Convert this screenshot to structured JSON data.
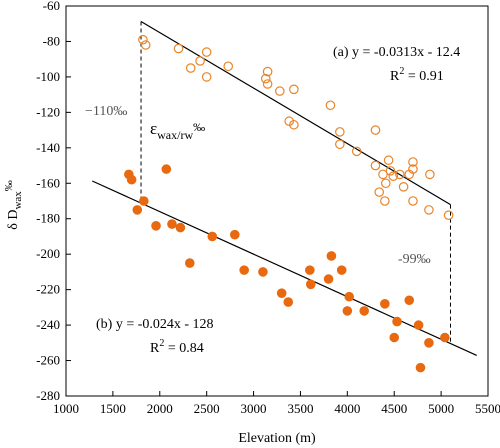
{
  "chart_data": {
    "type": "scatter",
    "xlabel": "Elevation (m)",
    "ylabel": "δ D",
    "ylabel_sub": "wax",
    "ylabel_sup": "‰",
    "xlim": [
      1000,
      5500
    ],
    "ylim": [
      -280,
      -60
    ],
    "xticks": [
      1000,
      1500,
      2000,
      2500,
      3000,
      3500,
      4000,
      4500,
      5000,
      5500
    ],
    "yticks": [
      -60,
      -80,
      -100,
      -120,
      -140,
      -160,
      -180,
      -200,
      -220,
      -240,
      -260,
      -280
    ],
    "series": [
      {
        "marker": "open-circle",
        "color": "#e8842a",
        "points": [
          [
            1820,
            -79
          ],
          [
            1850,
            -82
          ],
          [
            2200,
            -84
          ],
          [
            2330,
            -95
          ],
          [
            2430,
            -91
          ],
          [
            2500,
            -86
          ],
          [
            2500,
            -100
          ],
          [
            2730,
            -94
          ],
          [
            3130,
            -101
          ],
          [
            3150,
            -97
          ],
          [
            3150,
            -104
          ],
          [
            3280,
            -108
          ],
          [
            3430,
            -107
          ],
          [
            3380,
            -125
          ],
          [
            3430,
            -127
          ],
          [
            3820,
            -116
          ],
          [
            3920,
            -131
          ],
          [
            3920,
            -138
          ],
          [
            4100,
            -142
          ],
          [
            4300,
            -130
          ],
          [
            4300,
            -150
          ],
          [
            4380,
            -155
          ],
          [
            4410,
            -160
          ],
          [
            4440,
            -147
          ],
          [
            4460,
            -153
          ],
          [
            4490,
            -156
          ],
          [
            4560,
            -155
          ],
          [
            4600,
            -162
          ],
          [
            4660,
            -155
          ],
          [
            4700,
            -148
          ],
          [
            4700,
            -152
          ],
          [
            4700,
            -170
          ],
          [
            4400,
            -170
          ],
          [
            4340,
            -165
          ],
          [
            4880,
            -155
          ],
          [
            4870,
            -175
          ],
          [
            5080,
            -178
          ]
        ],
        "fit": {
          "slope": -0.0313,
          "intercept": -12.4,
          "x_range": [
            1800,
            5100
          ]
        }
      },
      {
        "marker": "filled-circle",
        "color": "#e8690f",
        "points": [
          [
            1670,
            -155
          ],
          [
            1700,
            -158
          ],
          [
            1760,
            -175
          ],
          [
            1830,
            -170
          ],
          [
            1960,
            -184
          ],
          [
            2070,
            -152
          ],
          [
            2130,
            -183
          ],
          [
            2220,
            -185
          ],
          [
            2320,
            -205
          ],
          [
            2560,
            -190
          ],
          [
            2800,
            -189
          ],
          [
            2900,
            -209
          ],
          [
            3100,
            -210
          ],
          [
            3300,
            -222
          ],
          [
            3370,
            -227
          ],
          [
            3600,
            -209
          ],
          [
            3610,
            -217
          ],
          [
            3800,
            -214
          ],
          [
            3830,
            -201
          ],
          [
            3940,
            -209
          ],
          [
            4020,
            -224
          ],
          [
            4000,
            -232
          ],
          [
            4180,
            -232
          ],
          [
            4400,
            -228
          ],
          [
            4530,
            -238
          ],
          [
            4500,
            -247
          ],
          [
            4660,
            -226
          ],
          [
            4760,
            -240
          ],
          [
            4780,
            -264
          ],
          [
            4870,
            -250
          ],
          [
            5040,
            -247
          ]
        ],
        "fit": {
          "slope": -0.024,
          "intercept": -128,
          "x_range": [
            1280,
            5380
          ]
        }
      }
    ],
    "annotations": {
      "eq_a": "(a)  y = -0.0313x - 12.4",
      "r2_a_prefix": "R",
      "r2_a_sup": "2",
      "r2_a_value": " = 0.91",
      "eq_b": "(b)  y = -0.024x - 128",
      "r2_b_prefix": "R",
      "r2_b_sup": "2",
      "r2_b_value": " = 0.84",
      "left_gap": "−110‰",
      "right_gap": "-99‰",
      "epsilon_symbol": "ε",
      "epsilon_sub": "wax/rw",
      "epsilon_sup": "‰"
    }
  }
}
